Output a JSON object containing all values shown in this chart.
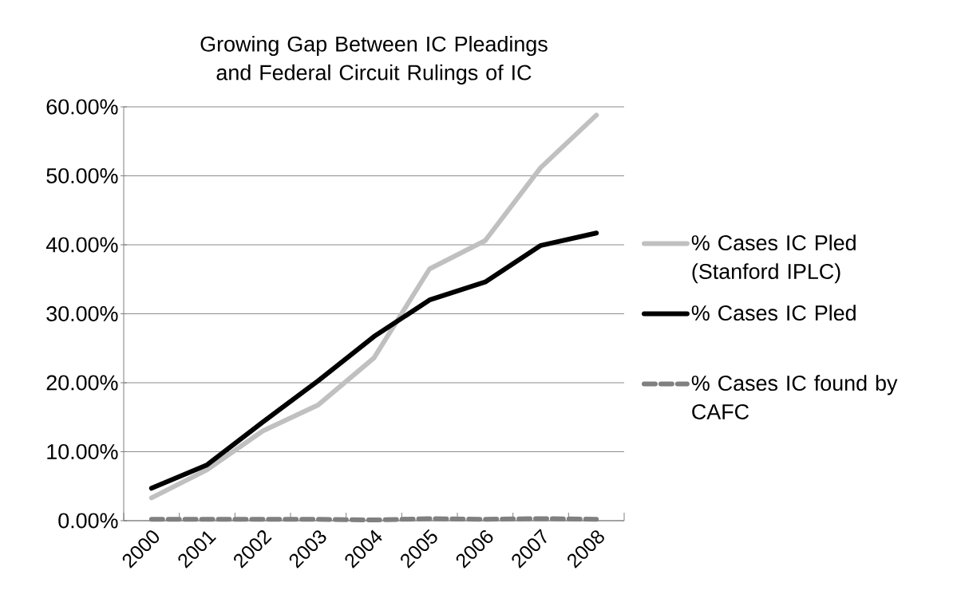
{
  "chart_data": {
    "type": "line",
    "title": "Growing Gap Between IC Pleadings and Federal Circuit Rulings of IC",
    "categories": [
      "2000",
      "2001",
      "2002",
      "2003",
      "2004",
      "2005",
      "2006",
      "2007",
      "2008"
    ],
    "series": [
      {
        "name": "% Cases IC Pled (Stanford IPLC)",
        "color": "#c0c0c0",
        "values": [
          3.3,
          7.4,
          13.0,
          16.8,
          23.6,
          36.5,
          40.6,
          51.2,
          58.8
        ]
      },
      {
        "name": "% Cases IC Pled",
        "color": "#000000",
        "values": [
          4.7,
          8.1,
          14.3,
          20.3,
          26.7,
          32.0,
          34.6,
          39.9,
          41.7
        ]
      },
      {
        "name": "% Cases IC found by CAFC",
        "color": "#808080",
        "line_style": "dashed",
        "values": [
          0.2,
          0.2,
          0.2,
          0.2,
          0.1,
          0.3,
          0.2,
          0.3,
          0.2
        ]
      }
    ],
    "ylim": [
      0,
      60
    ],
    "yticks": [
      {
        "value": 0,
        "label": "0.00%"
      },
      {
        "value": 10,
        "label": "10.00%"
      },
      {
        "value": 20,
        "label": "20.00%"
      },
      {
        "value": 30,
        "label": "30.00%"
      },
      {
        "value": 40,
        "label": "40.00%"
      },
      {
        "value": 50,
        "label": "50.00%"
      },
      {
        "value": 60,
        "label": "60.00%"
      }
    ],
    "grid": "y",
    "legend": "right",
    "line_style": "solid",
    "marker": "none"
  }
}
